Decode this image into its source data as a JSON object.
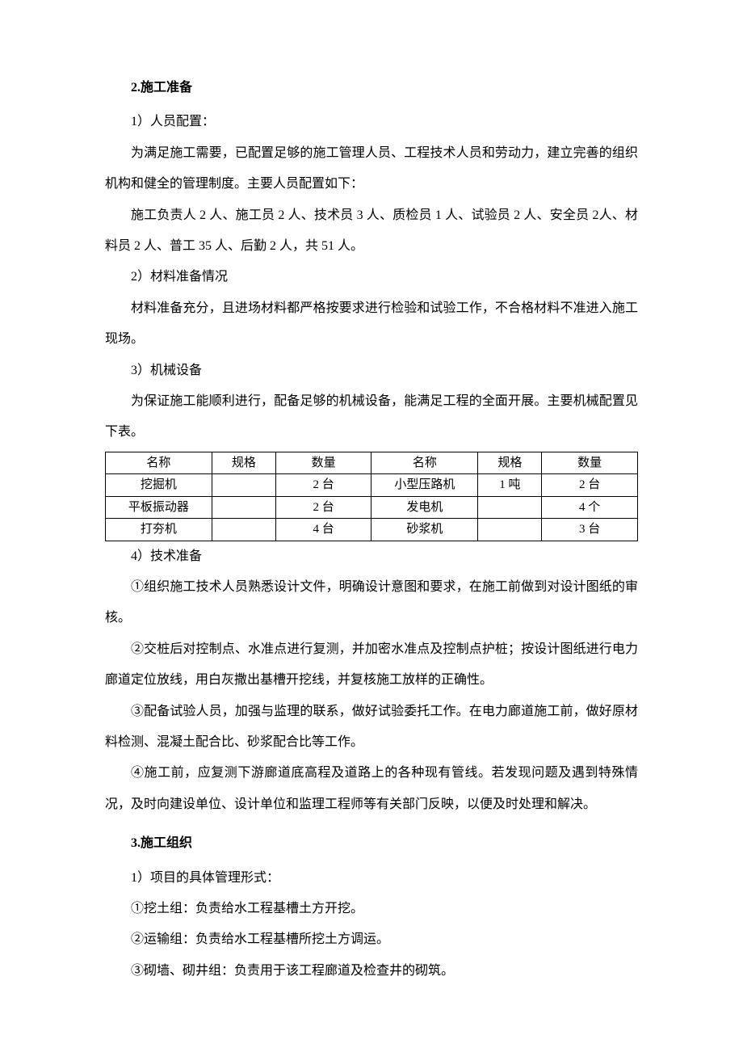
{
  "section2": {
    "heading": "2.施工准备",
    "sub1": {
      "title": "1）人员配置：",
      "p1": "为满足施工需要，已配置足够的施工管理人员、工程技术人员和劳动力，建立完善的组织机构和健全的管理制度。主要人员配置如下：",
      "p2": "施工负责人 2 人、施工员 2 人、技术员 3 人、质检员 1 人、试验员 2 人、安全员 2人、材料员 2 人、普工 35 人、后勤 2 人，共 51 人。"
    },
    "sub2": {
      "title": "2）材料准备情况",
      "p1": "材料准备充分，且进场材料都严格按要求进行检验和试验工作，不合格材料不准进入施工现场。"
    },
    "sub3": {
      "title": "3）机械设备",
      "p1": "为保证施工能顺利进行，配备足够的机械设备，能满足工程的全面开展。主要机械配置见下表。"
    },
    "table": {
      "headers": {
        "name": "名称",
        "spec": "规格",
        "qty": "数量"
      },
      "rows": [
        {
          "name1": "挖掘机",
          "spec1": "",
          "qty1": "2 台",
          "name2": "小型压路机",
          "spec2": "1 吨",
          "qty2": "2 台"
        },
        {
          "name1": "平板振动器",
          "spec1": "",
          "qty1": "2 台",
          "name2": "发电机",
          "spec2": "",
          "qty2": "4 个"
        },
        {
          "name1": "打夯机",
          "spec1": "",
          "qty1": "4 台",
          "name2": "砂浆机",
          "spec2": "",
          "qty2": "3 台"
        }
      ]
    },
    "sub4": {
      "title": "4）技术准备",
      "p1": "①组织施工技术人员熟悉设计文件，明确设计意图和要求，在施工前做到对设计图纸的审核。",
      "p2": "②交桩后对控制点、水准点进行复测，并加密水准点及控制点护桩；按设计图纸进行电力廊道定位放线，用白灰撒出基槽开挖线，并复核施工放样的正确性。",
      "p3": "③配备试验人员，加强与监理的联系，做好试验委托工作。在电力廊道施工前，做好原材料检测、混凝土配合比、砂浆配合比等工作。",
      "p4": "④施工前，应复测下游廊道底高程及道路上的各种现有管线。若发现问题及遇到特殊情况，及时向建设单位、设计单位和监理工程师等有关部门反映，以便及时处理和解决。"
    }
  },
  "section3": {
    "heading": "3.施工组织",
    "sub1": {
      "title": "1）项目的具体管理形式：",
      "p1": "①挖土组：负责给水工程基槽土方开挖。",
      "p2": "②运输组：负责给水工程基槽所挖土方调运。",
      "p3": "③砌墙、砌井组：负责用于该工程廊道及检查井的砌筑。"
    }
  }
}
